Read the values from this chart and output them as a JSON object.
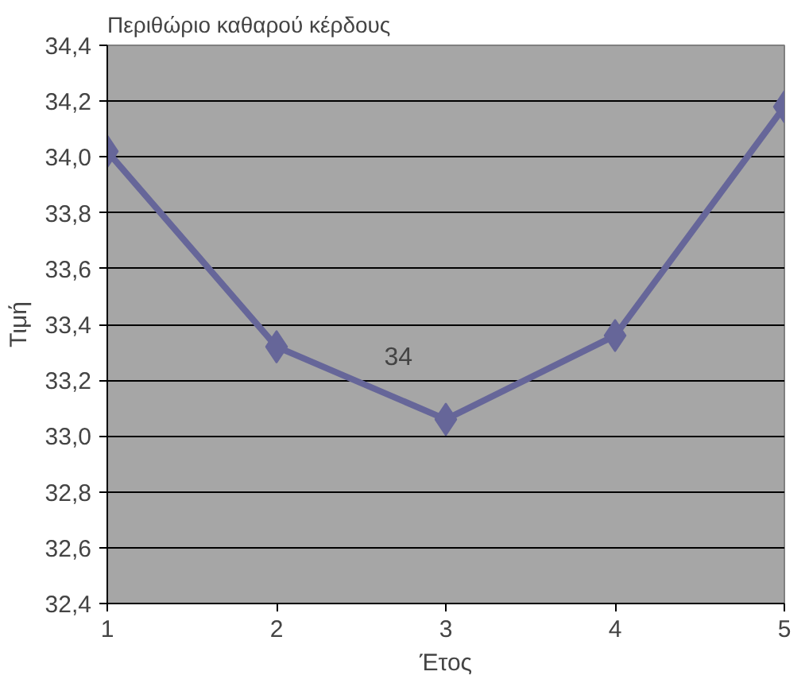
{
  "chart_data": {
    "type": "line",
    "title": "Περιθώριο καθαρού κέρδους",
    "xlabel": "Έτος",
    "ylabel": "Τιμή",
    "x": [
      1,
      2,
      3,
      4,
      5
    ],
    "series": [
      {
        "color": "#666699",
        "values": [
          34.02,
          33.32,
          33.06,
          33.36,
          34.18
        ]
      }
    ],
    "xlim": [
      1,
      5
    ],
    "xticks": [
      1,
      2,
      3,
      4,
      5
    ],
    "ylim": [
      32.4,
      34.4
    ],
    "yticks": [
      {
        "value": 32.4,
        "label": "32,4"
      },
      {
        "value": 32.6,
        "label": "32,6"
      },
      {
        "value": 32.8,
        "label": "32,8"
      },
      {
        "value": 33.0,
        "label": "33,0"
      },
      {
        "value": 33.2,
        "label": "33,2"
      },
      {
        "value": 33.4,
        "label": "33,4"
      },
      {
        "value": 33.6,
        "label": "33,6"
      },
      {
        "value": 33.8,
        "label": "33,8"
      },
      {
        "value": 34.0,
        "label": "34,0"
      },
      {
        "value": 34.2,
        "label": "34,2"
      },
      {
        "value": 34.4,
        "label": "34,4"
      }
    ],
    "grid": "y",
    "marker": "diamond",
    "line_style": "solid",
    "annotations": [
      "34"
    ]
  }
}
